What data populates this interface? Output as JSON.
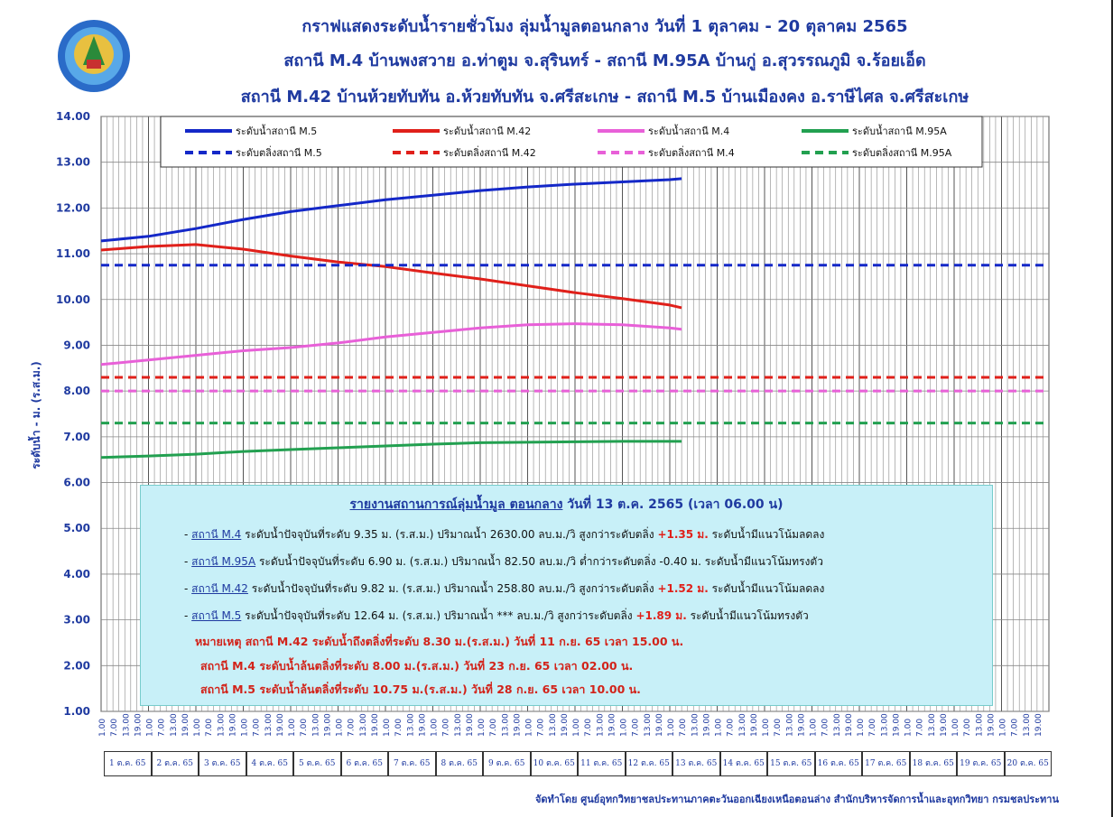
{
  "titles": [
    "กราฟแสดงระดับน้ำรายชั่วโมง ลุ่มน้ำมูลตอนกลาง วันที่ 1 ตุลาคม - 20 ตุลาคม 2565",
    "สถานี M.4 บ้านพงสวาย อ.ท่าตูม จ.สุรินทร์ - สถานี M.95A บ้านกู่ อ.สุวรรณภูมิ จ.ร้อยเอ็ด",
    "สถานี M.42 บ้านห้วยทับทัน อ.ห้วยทับทัน จ.ศรีสะเกษ - สถานี M.5 บ้านเมืองคง อ.ราษีไศล จ.ศรีสะเกษ"
  ],
  "logo_text": "กรมชลประทาน",
  "colors": {
    "blue": "#1428c8",
    "red": "#e0201a",
    "pink": "#e860d8",
    "green": "#22a050",
    "title": "#1f3aa0"
  },
  "chart_data": {
    "type": "line",
    "ylabel": "ระดับน้ำ - ม. (ร.ส.ม.)",
    "ylim": [
      1.0,
      14.0
    ],
    "yticks": [
      "14.00",
      "13.00",
      "12.00",
      "11.00",
      "10.00",
      "9.00",
      "8.00",
      "7.00",
      "6.00",
      "5.00",
      "4.00",
      "3.00",
      "2.00",
      "1.00"
    ],
    "x_hour_labels": [
      "1.00",
      "7.00",
      "13.00",
      "19.00"
    ],
    "days": [
      "1 ต.ค. 65",
      "2 ต.ค. 65",
      "3 ต.ค. 65",
      "4 ต.ค. 65",
      "5 ต.ค. 65",
      "6 ต.ค. 65",
      "7 ต.ค. 65",
      "8 ต.ค. 65",
      "9 ต.ค. 65",
      "10 ต.ค. 65",
      "11 ต.ค. 65",
      "12 ต.ค. 65",
      "13 ต.ค. 65",
      "14 ต.ค. 65",
      "15 ต.ค. 65",
      "16 ต.ค. 65",
      "17 ต.ค. 65",
      "18 ต.ค. 65",
      "19 ต.ค. 65",
      "20 ต.ค. 65"
    ],
    "series_day_points": [
      1,
      2,
      3,
      4,
      5,
      6,
      7,
      8,
      9,
      10,
      11,
      12,
      13,
      13.25
    ],
    "series": [
      {
        "name": "ระดับน้ำสถานี M.5",
        "color": "#1428c8",
        "style": "solid",
        "values": [
          11.28,
          11.38,
          11.55,
          11.75,
          11.92,
          12.05,
          12.18,
          12.28,
          12.38,
          12.46,
          12.52,
          12.57,
          12.62,
          12.64
        ]
      },
      {
        "name": "ระดับน้ำสถานี M.42",
        "color": "#e0201a",
        "style": "solid",
        "values": [
          11.08,
          11.16,
          11.2,
          11.1,
          10.95,
          10.82,
          10.72,
          10.58,
          10.45,
          10.3,
          10.15,
          10.02,
          9.88,
          9.82
        ]
      },
      {
        "name": "ระดับน้ำสถานี M.4",
        "color": "#e860d8",
        "style": "solid",
        "values": [
          8.58,
          8.68,
          8.78,
          8.88,
          8.95,
          9.05,
          9.18,
          9.28,
          9.38,
          9.45,
          9.47,
          9.45,
          9.38,
          9.35
        ]
      },
      {
        "name": "ระดับน้ำสถานี M.95A",
        "color": "#22a050",
        "style": "solid",
        "values": [
          6.55,
          6.58,
          6.62,
          6.68,
          6.72,
          6.76,
          6.8,
          6.84,
          6.87,
          6.88,
          6.89,
          6.9,
          6.9,
          6.9
        ]
      },
      {
        "name": "ระดับตลิ่งสถานี M.5",
        "color": "#1428c8",
        "style": "dashed",
        "constant": 10.75
      },
      {
        "name": "ระดับตลิ่งสถานี M.42",
        "color": "#e0201a",
        "style": "dashed",
        "constant": 8.3
      },
      {
        "name": "ระดับตลิ่งสถานี M.4",
        "color": "#e860d8",
        "style": "dashed",
        "constant": 8.0
      },
      {
        "name": "ระดับตลิ่งสถานี M.95A",
        "color": "#22a050",
        "style": "dashed",
        "constant": 7.3
      }
    ],
    "legend_position": "top"
  },
  "report": {
    "title": "รายงานสถานการณ์ลุ่มน้ำมูล ตอนกลาง",
    "date": " วันที่ 13 ต.ค. 2565  (เวลา 06.00 น)",
    "lines": [
      {
        "prefix": "- ",
        "station": "สถานี M.4",
        "text": "   ระดับน้ำปัจจุบันที่ระดับ 9.35 ม. (ร.ส.ม.) ปริมาณน้ำ  2630.00 ลบ.ม./วิ สูงกว่าระดับตลิ่ง ",
        "diff": "+1.35 ม.",
        "tail": " ระดับน้ำมีแนวโน้มลดลง"
      },
      {
        "prefix": "- ",
        "station": "สถานี M.95A",
        "text": " ระดับน้ำปัจจุบันที่ระดับ 6.90 ม. (ร.ส.ม.) ปริมาณน้ำ   82.50  ลบ.ม./วิ  ต่ำกว่าระดับตลิ่ง ",
        "diff": "-0.40 ม.",
        "tail": " ระดับน้ำมีแนวโน้มทรงตัว"
      },
      {
        "prefix": "- ",
        "station": "สถานี M.42",
        "text": "   ระดับน้ำปัจจุบันที่ระดับ 9.82 ม. (ร.ส.ม.) ปริมาณน้ำ  258.80 ลบ.ม./วิ   สูงกว่าระดับตลิ่ง ",
        "diff": "+1.52 ม.",
        "tail": " ระดับน้ำมีแนวโน้มลดลง"
      },
      {
        "prefix": "- ",
        "station": "สถานี M.5",
        "text": "      ระดับน้ำปัจจุบันที่ระดับ 12.64 ม. (ร.ส.ม.) ปริมาณน้ำ ***     ลบ.ม./วิ  สูงกว่าระดับตลิ่ง ",
        "diff": "+1.89 ม.",
        "tail": " ระดับน้ำมีแนวโน้มทรงตัว"
      }
    ],
    "notes": [
      "หมายเหตุ   สถานี M.42 ระดับน้ำถึงตลิ่งที่ระดับ 8.30 ม.(ร.ส.ม.) วันที่ 11 ก.ย. 65 เวลา 15.00 น.",
      "สถานี M.4 ระดับน้ำล้นตลิ่งที่ระดับ 8.00 ม.(ร.ส.ม.) วันที่ 23 ก.ย. 65 เวลา 02.00 น.",
      "สถานี M.5 ระดับน้ำล้นตลิ่งที่ระดับ 10.75 ม.(ร.ส.ม.) วันที่ 28 ก.ย. 65 เวลา 10.00 น."
    ]
  },
  "footer": "จัดทำโดย ศูนย์อุทกวิทยาชลประทานภาคตะวันออกเฉียงเหนือตอนล่าง สำนักบริหารจัดการน้ำและอุทกวิทยา กรมชลประทาน"
}
